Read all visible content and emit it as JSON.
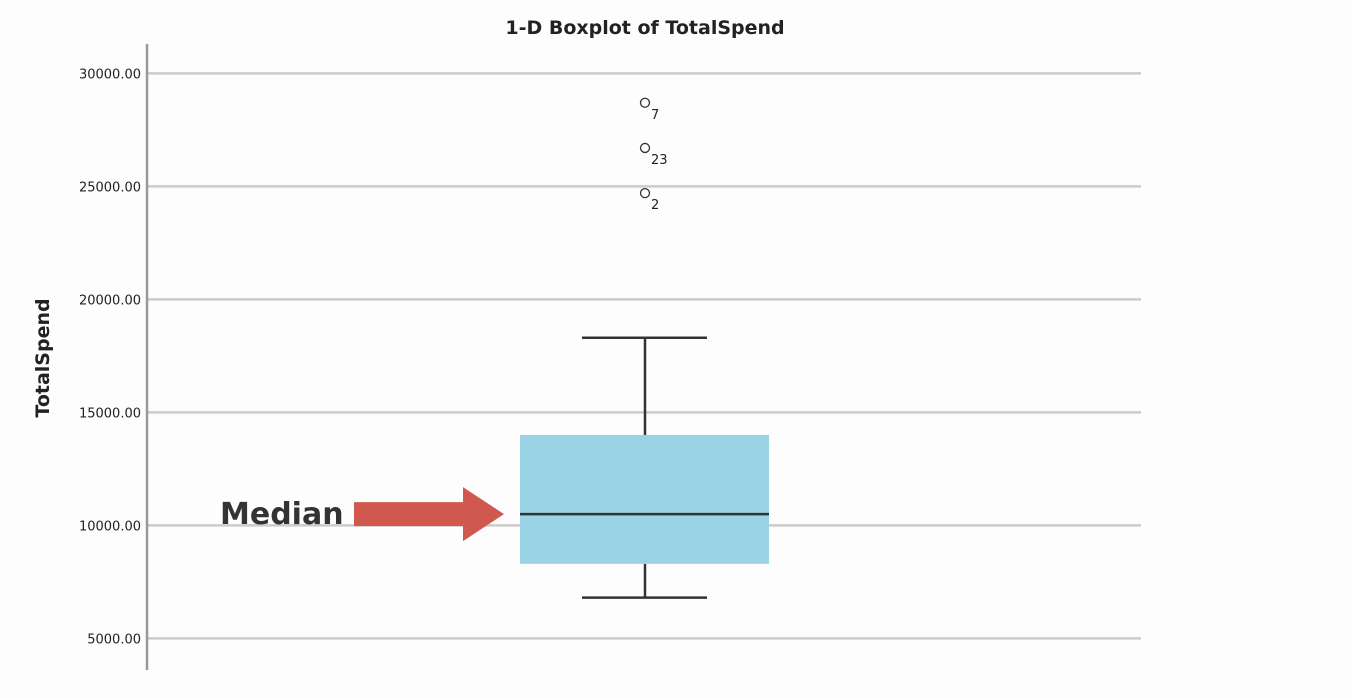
{
  "chart_data": {
    "type": "boxplot",
    "title": "1-D Boxplot of TotalSpend",
    "ylabel": "TotalSpend",
    "ylim": [
      3600,
      31300
    ],
    "yticks": [
      5000,
      10000,
      15000,
      20000,
      25000,
      30000
    ],
    "ytick_labels": [
      "5000.00",
      "10000.00",
      "15000.00",
      "20000.00",
      "25000.00",
      "30000.00"
    ],
    "grid": true,
    "box": {
      "whisker_low": 6800,
      "q1": 8300,
      "median": 10500,
      "q3": 14000,
      "whisker_high": 18300
    },
    "outliers": [
      {
        "label": "7",
        "value": 28700
      },
      {
        "label": "23",
        "value": 26700
      },
      {
        "label": "2",
        "value": 24700
      }
    ],
    "annotation": {
      "text": "Median",
      "target": "median"
    },
    "colors": {
      "box_fill": "#99d3e5",
      "median_line": "#333333",
      "whisker": "#333333",
      "grid": "#cccccc",
      "axis": "#999999",
      "arrow": "#d0594f",
      "outlier_marker": "#333333"
    }
  }
}
